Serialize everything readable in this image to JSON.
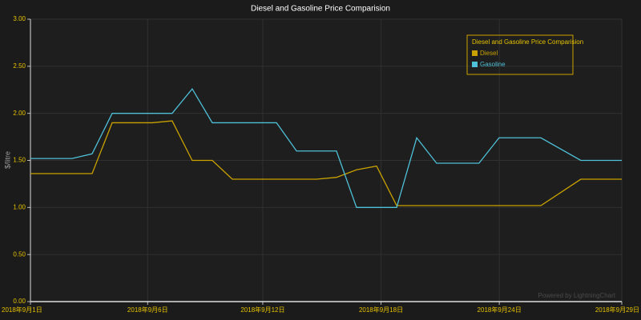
{
  "chart_data": {
    "type": "line",
    "title": "Diesel and Gasoline Price Comparision",
    "y_label": "$/litre",
    "legend_title": "Diesel and Gasoline Price Comparision",
    "legend_position": "upper right",
    "watermark": "Powered by LightningChart",
    "grid": true,
    "xlim": [
      1,
      29
    ],
    "xticks": [
      {
        "value": 1,
        "label": "2018年9月1日"
      },
      {
        "value": 6.55,
        "label": "2018年9月6日"
      },
      {
        "value": 12,
        "label": "2018年9月12日"
      },
      {
        "value": 17.6,
        "label": "2018年9月18日"
      },
      {
        "value": 23.2,
        "label": "2018年9月24日"
      },
      {
        "value": 29,
        "label": "2018年9月29日"
      }
    ],
    "ylim": [
      0,
      3
    ],
    "yticks": [
      {
        "value": 0,
        "label": "0.00"
      },
      {
        "value": 0.5,
        "label": "0.50"
      },
      {
        "value": 1,
        "label": "1.00"
      },
      {
        "value": 1.5,
        "label": "1.50"
      },
      {
        "value": 2,
        "label": "2.00"
      },
      {
        "value": 2.5,
        "label": "2.50"
      },
      {
        "value": 3,
        "label": "3.00"
      }
    ],
    "series": [
      {
        "name": "Diesel",
        "color": "#c9a200",
        "x": [
          1,
          3.92,
          4.87,
          6.77,
          7.71,
          8.66,
          9.61,
          10.56,
          14.54,
          15.49,
          16.44,
          17.39,
          18.34,
          25.17,
          27.06,
          29
        ],
        "values": [
          1.36,
          1.36,
          1.9,
          1.9,
          1.92,
          1.5,
          1.5,
          1.3,
          1.3,
          1.32,
          1.4,
          1.44,
          1.02,
          1.02,
          1.3,
          1.3
        ]
      },
      {
        "name": "Gasoline",
        "color": "#4ec0d8",
        "x": [
          1,
          2.97,
          3.92,
          4.87,
          7.71,
          8.66,
          9.61,
          12.65,
          13.6,
          15.49,
          16.44,
          18.34,
          19.29,
          20.23,
          22.24,
          23.19,
          25.17,
          27.06,
          29
        ],
        "values": [
          1.52,
          1.52,
          1.57,
          2.0,
          2.0,
          2.26,
          1.9,
          1.9,
          1.6,
          1.6,
          1.0,
          1.0,
          1.74,
          1.47,
          1.47,
          1.74,
          1.74,
          1.5,
          1.5
        ]
      }
    ]
  }
}
